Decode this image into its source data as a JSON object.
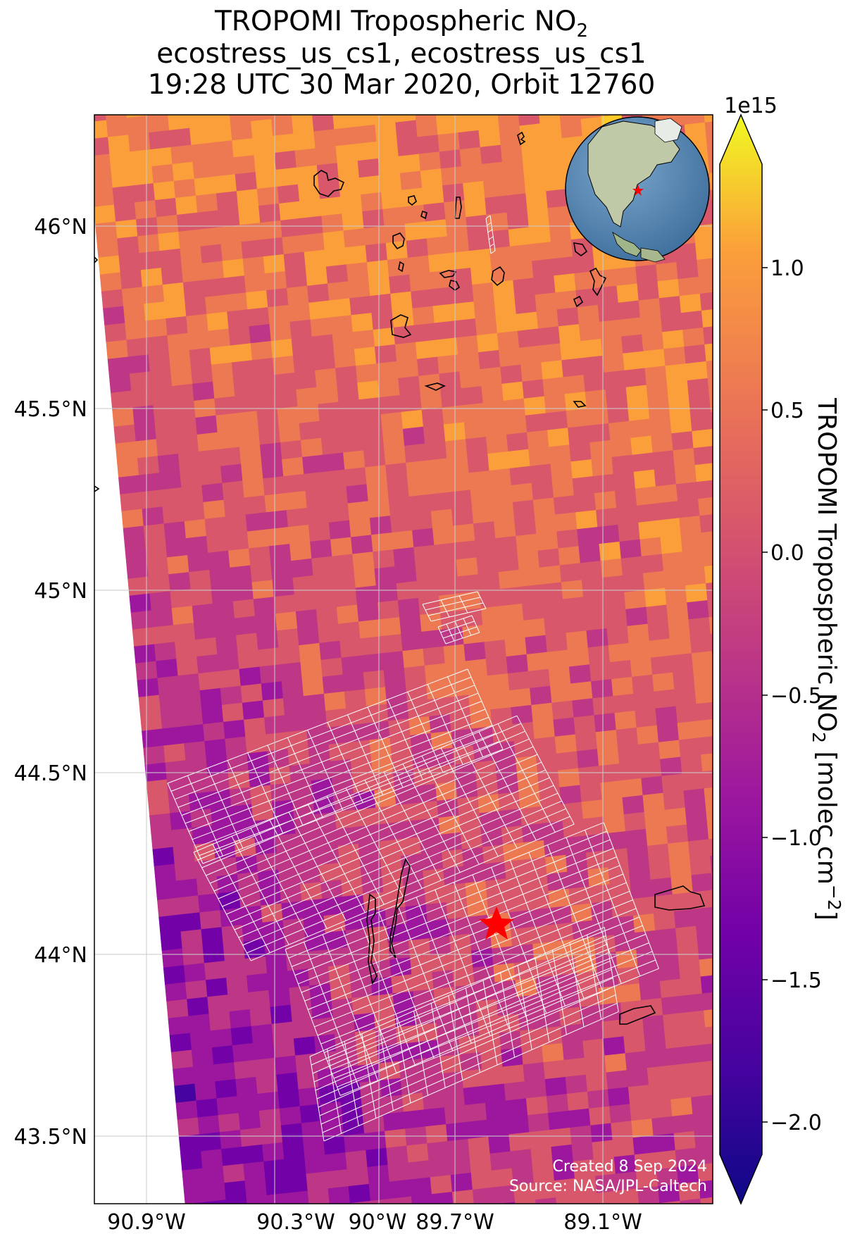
{
  "title": {
    "line1": "TROPOMI Tropospheric NO",
    "line1_sub": "2",
    "line2": "ecostress_us_cs1, ecostress_us_cs1",
    "line3": "19:28 UTC 30 Mar 2020, Orbit 12760"
  },
  "map": {
    "lat_ticks": [
      "46°N",
      "45.5°N",
      "45°N",
      "44.5°N",
      "44°N",
      "43.5°N"
    ],
    "lon_ticks": [
      "90.9°W",
      "90.3°W",
      "90°W",
      "89.7°W",
      "89.1°W"
    ],
    "target_marker": "red-star",
    "footer_line1": "Created 8 Sep 2024",
    "footer_line2": "Source: NASA/JPL-Caltech",
    "inset": "globe-north-america"
  },
  "colorbar": {
    "multiplier": "1e15",
    "ticks": [
      "1.0",
      "0.5",
      "0.0",
      "−0.5",
      "−1.0",
      "−1.5",
      "−2.0"
    ],
    "label": "TROPOMI Tropospheric NO",
    "label_sub": "2",
    "label_units": " [molec cm",
    "label_exp": "−2",
    "label_end": "]",
    "colormap": "plasma",
    "range": [
      -2.1,
      1.4
    ]
  },
  "colors": {
    "frame": "#000000",
    "grid": "#cccccc",
    "footprint": "#ffffff",
    "marker": "#ff0000",
    "ocean": "#4f7fae"
  }
}
